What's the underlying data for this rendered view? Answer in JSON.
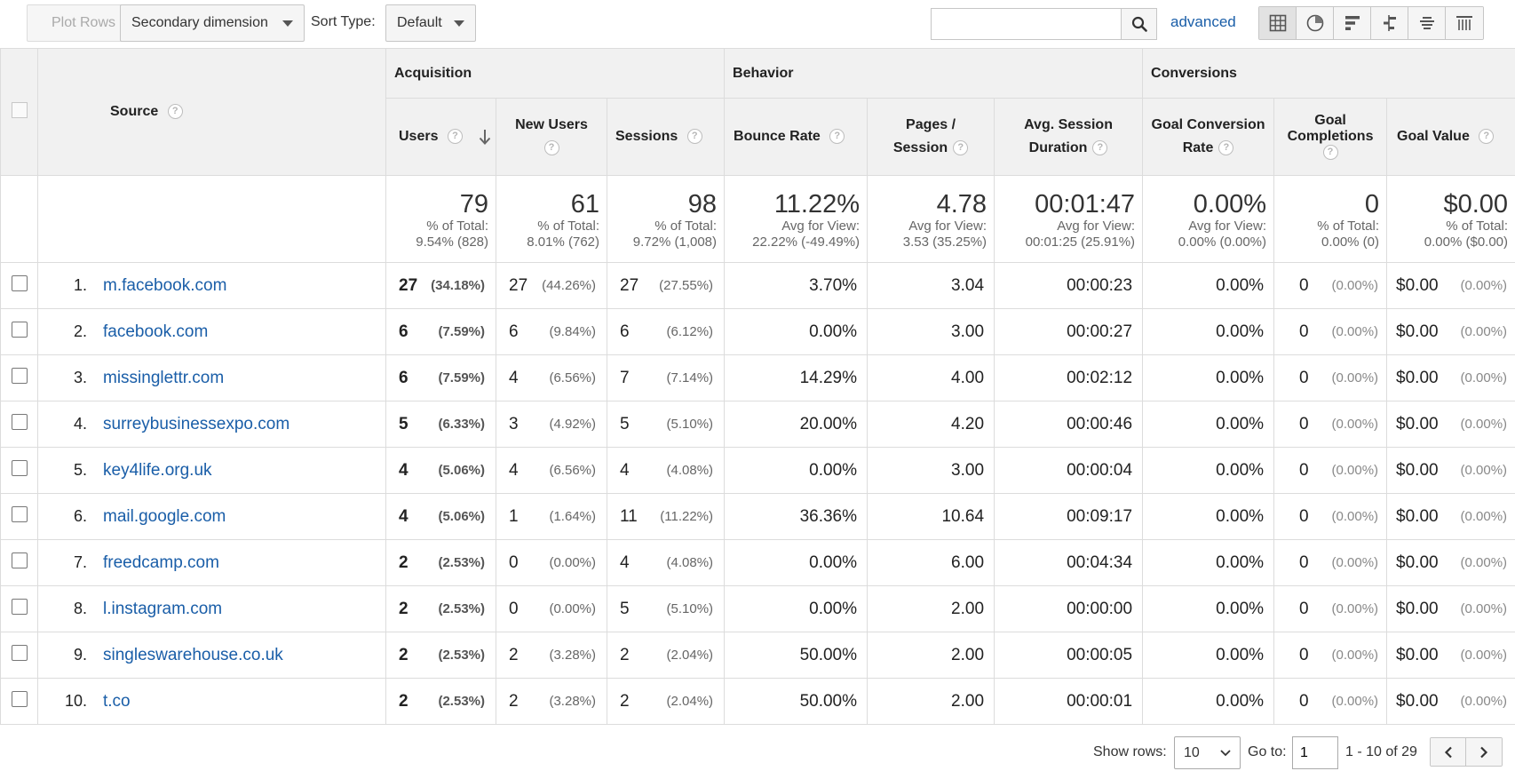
{
  "toolbar": {
    "plot_rows": "Plot Rows",
    "secondary_dimension": "Secondary dimension",
    "sort_type_label": "Sort Type:",
    "sort_type_value": "Default",
    "search_value": "",
    "advanced_link": "advanced",
    "icons": [
      "table-icon",
      "pie-chart-icon",
      "bar-chart-icon",
      "comparison-icon",
      "term-cloud-icon",
      "pivot-icon"
    ]
  },
  "table": {
    "groups": {
      "acquisition": "Acquisition",
      "behavior": "Behavior",
      "conversions": "Conversions"
    },
    "columns": {
      "source": "Source",
      "users": "Users",
      "new_users": "New Users",
      "sessions": "Sessions",
      "bounce_rate": "Bounce Rate",
      "pages_session_1": "Pages /",
      "pages_session_2": "Session",
      "avg_session_1": "Avg. Session",
      "avg_session_2": "Duration",
      "goal_conv_1": "Goal Conversion",
      "goal_conv_2": "Rate",
      "goal_comp_1": "Goal",
      "goal_comp_2": "Completions",
      "goal_value": "Goal Value"
    },
    "totals": {
      "users": {
        "value": "79",
        "sub1": "% of Total:",
        "sub2": "9.54% (828)"
      },
      "new_users": {
        "value": "61",
        "sub1": "% of Total:",
        "sub2": "8.01% (762)"
      },
      "sessions": {
        "value": "98",
        "sub1": "% of Total:",
        "sub2": "9.72% (1,008)"
      },
      "bounce_rate": {
        "value": "11.22%",
        "sub1": "Avg for View:",
        "sub2": "22.22% (-49.49%)"
      },
      "pages_session": {
        "value": "4.78",
        "sub1": "Avg for View:",
        "sub2": "3.53 (35.25%)"
      },
      "avg_duration": {
        "value": "00:01:47",
        "sub1": "Avg for View:",
        "sub2": "00:01:25 (25.91%)"
      },
      "goal_conv": {
        "value": "0.00%",
        "sub1": "Avg for View:",
        "sub2": "0.00% (0.00%)"
      },
      "goal_comp": {
        "value": "0",
        "sub1": "% of Total:",
        "sub2": "0.00% (0)"
      },
      "goal_value": {
        "value": "$0.00",
        "sub1": "% of Total:",
        "sub2": "0.00% ($0.00)"
      }
    },
    "rows": [
      {
        "rank": "1.",
        "source": "m.facebook.com",
        "users": "27",
        "users_pct": "(34.18%)",
        "new_users": "27",
        "new_users_pct": "(44.26%)",
        "sessions": "27",
        "sessions_pct": "(27.55%)",
        "bounce": "3.70%",
        "pages": "3.04",
        "duration": "00:00:23",
        "goal_conv": "0.00%",
        "goal_comp": "0",
        "goal_comp_pct": "(0.00%)",
        "goal_value": "$0.00",
        "goal_value_pct": "(0.00%)"
      },
      {
        "rank": "2.",
        "source": "facebook.com",
        "users": "6",
        "users_pct": "(7.59%)",
        "new_users": "6",
        "new_users_pct": "(9.84%)",
        "sessions": "6",
        "sessions_pct": "(6.12%)",
        "bounce": "0.00%",
        "pages": "3.00",
        "duration": "00:00:27",
        "goal_conv": "0.00%",
        "goal_comp": "0",
        "goal_comp_pct": "(0.00%)",
        "goal_value": "$0.00",
        "goal_value_pct": "(0.00%)"
      },
      {
        "rank": "3.",
        "source": "missinglettr.com",
        "users": "6",
        "users_pct": "(7.59%)",
        "new_users": "4",
        "new_users_pct": "(6.56%)",
        "sessions": "7",
        "sessions_pct": "(7.14%)",
        "bounce": "14.29%",
        "pages": "4.00",
        "duration": "00:02:12",
        "goal_conv": "0.00%",
        "goal_comp": "0",
        "goal_comp_pct": "(0.00%)",
        "goal_value": "$0.00",
        "goal_value_pct": "(0.00%)"
      },
      {
        "rank": "4.",
        "source": "surreybusinessexpo.com",
        "users": "5",
        "users_pct": "(6.33%)",
        "new_users": "3",
        "new_users_pct": "(4.92%)",
        "sessions": "5",
        "sessions_pct": "(5.10%)",
        "bounce": "20.00%",
        "pages": "4.20",
        "duration": "00:00:46",
        "goal_conv": "0.00%",
        "goal_comp": "0",
        "goal_comp_pct": "(0.00%)",
        "goal_value": "$0.00",
        "goal_value_pct": "(0.00%)"
      },
      {
        "rank": "5.",
        "source": "key4life.org.uk",
        "users": "4",
        "users_pct": "(5.06%)",
        "new_users": "4",
        "new_users_pct": "(6.56%)",
        "sessions": "4",
        "sessions_pct": "(4.08%)",
        "bounce": "0.00%",
        "pages": "3.00",
        "duration": "00:00:04",
        "goal_conv": "0.00%",
        "goal_comp": "0",
        "goal_comp_pct": "(0.00%)",
        "goal_value": "$0.00",
        "goal_value_pct": "(0.00%)"
      },
      {
        "rank": "6.",
        "source": "mail.google.com",
        "users": "4",
        "users_pct": "(5.06%)",
        "new_users": "1",
        "new_users_pct": "(1.64%)",
        "sessions": "11",
        "sessions_pct": "(11.22%)",
        "bounce": "36.36%",
        "pages": "10.64",
        "duration": "00:09:17",
        "goal_conv": "0.00%",
        "goal_comp": "0",
        "goal_comp_pct": "(0.00%)",
        "goal_value": "$0.00",
        "goal_value_pct": "(0.00%)"
      },
      {
        "rank": "7.",
        "source": "freedcamp.com",
        "users": "2",
        "users_pct": "(2.53%)",
        "new_users": "0",
        "new_users_pct": "(0.00%)",
        "sessions": "4",
        "sessions_pct": "(4.08%)",
        "bounce": "0.00%",
        "pages": "6.00",
        "duration": "00:04:34",
        "goal_conv": "0.00%",
        "goal_comp": "0",
        "goal_comp_pct": "(0.00%)",
        "goal_value": "$0.00",
        "goal_value_pct": "(0.00%)"
      },
      {
        "rank": "8.",
        "source": "l.instagram.com",
        "users": "2",
        "users_pct": "(2.53%)",
        "new_users": "0",
        "new_users_pct": "(0.00%)",
        "sessions": "5",
        "sessions_pct": "(5.10%)",
        "bounce": "0.00%",
        "pages": "2.00",
        "duration": "00:00:00",
        "goal_conv": "0.00%",
        "goal_comp": "0",
        "goal_comp_pct": "(0.00%)",
        "goal_value": "$0.00",
        "goal_value_pct": "(0.00%)"
      },
      {
        "rank": "9.",
        "source": "singleswarehouse.co.uk",
        "users": "2",
        "users_pct": "(2.53%)",
        "new_users": "2",
        "new_users_pct": "(3.28%)",
        "sessions": "2",
        "sessions_pct": "(2.04%)",
        "bounce": "50.00%",
        "pages": "2.00",
        "duration": "00:00:05",
        "goal_conv": "0.00%",
        "goal_comp": "0",
        "goal_comp_pct": "(0.00%)",
        "goal_value": "$0.00",
        "goal_value_pct": "(0.00%)"
      },
      {
        "rank": "10.",
        "source": "t.co",
        "users": "2",
        "users_pct": "(2.53%)",
        "new_users": "2",
        "new_users_pct": "(3.28%)",
        "sessions": "2",
        "sessions_pct": "(2.04%)",
        "bounce": "50.00%",
        "pages": "2.00",
        "duration": "00:00:01",
        "goal_conv": "0.00%",
        "goal_comp": "0",
        "goal_comp_pct": "(0.00%)",
        "goal_value": "$0.00",
        "goal_value_pct": "(0.00%)"
      }
    ]
  },
  "footer": {
    "show_rows_label": "Show rows:",
    "show_rows_value": "10",
    "goto_label": "Go to:",
    "goto_value": "1",
    "range": "1 - 10 of 29"
  },
  "colors": {
    "link": "#1a5ea8",
    "header_bg": "#f1f1f1",
    "border": "#dcdcdc"
  }
}
